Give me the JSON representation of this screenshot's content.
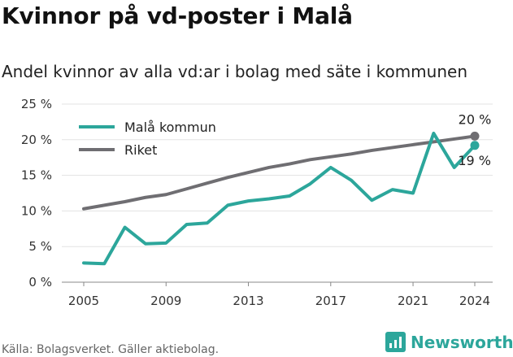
{
  "title": "Kvinnor på vd-poster i Malå",
  "subtitle": "Andel kvinnor av alla vd:ar i bolag med säte i kommunen",
  "source": "Källa: Bolagsverket. Gäller aktiebolag.",
  "brand": "Newsworthy",
  "chart_data": {
    "type": "line",
    "x": [
      2005,
      2006,
      2007,
      2008,
      2009,
      2010,
      2011,
      2012,
      2013,
      2014,
      2015,
      2016,
      2017,
      2018,
      2019,
      2020,
      2021,
      2022,
      2023,
      2024
    ],
    "xticks": [
      2005,
      2009,
      2013,
      2017,
      2021,
      2024
    ],
    "ylim": [
      0,
      25
    ],
    "yticks": [
      0,
      5,
      10,
      15,
      20,
      25
    ],
    "ytick_labels": [
      "0 %",
      "5 %",
      "10 %",
      "15 %",
      "20 %",
      "25 %"
    ],
    "grid": true,
    "legend": "top-left",
    "series": [
      {
        "name": "Malå kommun",
        "color": "#2ca69b",
        "values": [
          2.7,
          2.6,
          7.7,
          5.4,
          5.5,
          8.1,
          8.3,
          10.8,
          11.4,
          11.7,
          12.1,
          13.8,
          16.1,
          14.3,
          11.5,
          13.0,
          12.5,
          20.9,
          16.1,
          19.2
        ],
        "end_label": "19 %"
      },
      {
        "name": "Riket",
        "color": "#6f6e72",
        "values": [
          10.3,
          10.8,
          11.3,
          11.9,
          12.3,
          13.1,
          13.9,
          14.7,
          15.4,
          16.1,
          16.6,
          17.2,
          17.6,
          18.0,
          18.5,
          18.9,
          19.3,
          19.7,
          20.1,
          20.5
        ],
        "end_label": "20 %"
      }
    ]
  }
}
